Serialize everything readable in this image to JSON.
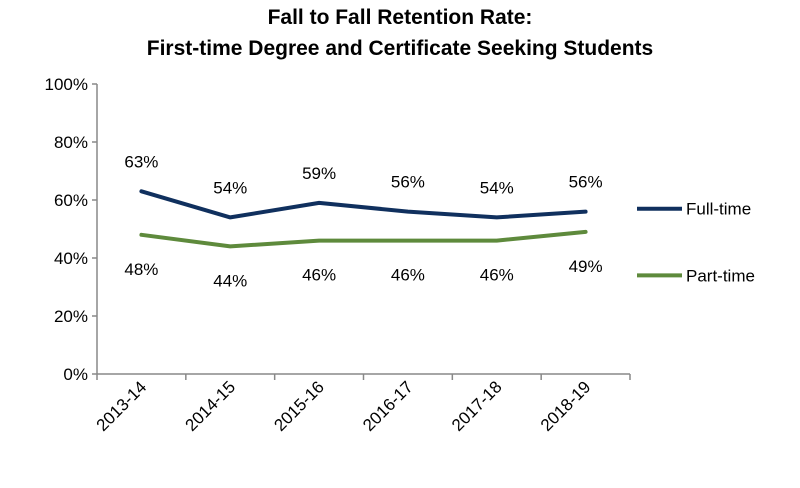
{
  "chart_data": {
    "type": "line",
    "title_line1": "Fall to Fall Retention Rate:",
    "title_line2": "First-time Degree and Certificate Seeking Students",
    "categories": [
      "2013-14",
      "2014-15",
      "2015-16",
      "2016-17",
      "2017-18",
      "2018-19"
    ],
    "y_ticks": [
      "0%",
      "20%",
      "40%",
      "60%",
      "80%",
      "100%"
    ],
    "ylim": [
      0,
      100
    ],
    "grid": false,
    "legend_position": "right",
    "series": [
      {
        "name": "Full-time",
        "color": "#10305e",
        "values": [
          63,
          54,
          59,
          56,
          54,
          56
        ],
        "labels": [
          "63%",
          "54%",
          "59%",
          "56%",
          "54%",
          "56%"
        ],
        "label_position": "above"
      },
      {
        "name": "Part-time",
        "color": "#5e8a3c",
        "values": [
          48,
          44,
          46,
          46,
          46,
          49
        ],
        "labels": [
          "48%",
          "44%",
          "46%",
          "46%",
          "46%",
          "49%"
        ],
        "label_position": "below"
      }
    ]
  }
}
